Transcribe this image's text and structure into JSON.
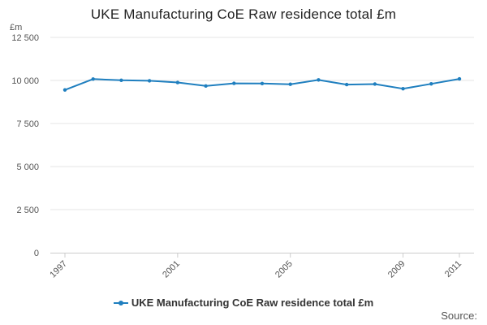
{
  "chart_data": {
    "type": "line",
    "title": "UKE Manufacturing CoE Raw residence total £m",
    "ylabel": "£m",
    "xlabel": "",
    "x": [
      1997,
      1998,
      1999,
      2000,
      2001,
      2002,
      2003,
      2004,
      2005,
      2006,
      2007,
      2008,
      2009,
      2010,
      2011
    ],
    "series": [
      {
        "name": "UKE Manufacturing CoE Raw residence total £m",
        "values": [
          9450,
          10080,
          10010,
          9980,
          9880,
          9680,
          9830,
          9820,
          9780,
          10030,
          9760,
          9790,
          9520,
          9800,
          10090
        ]
      }
    ],
    "x_tick_labels": [
      "1997",
      "2001",
      "2005",
      "2009",
      "2011"
    ],
    "y_ticks": [
      0,
      2500,
      5000,
      7500,
      10000,
      12500
    ],
    "y_tick_labels": [
      "0",
      "2 500",
      "5 000",
      "7 500",
      "10 000",
      "12 500"
    ],
    "ylim": [
      0,
      12500
    ],
    "grid": true,
    "legend_position": "bottom-center",
    "series_color": "#1f7fbf",
    "grid_color": "#e6e6e6",
    "axis_color": "#cccccc"
  },
  "footer": {
    "source_label": "Source:"
  }
}
